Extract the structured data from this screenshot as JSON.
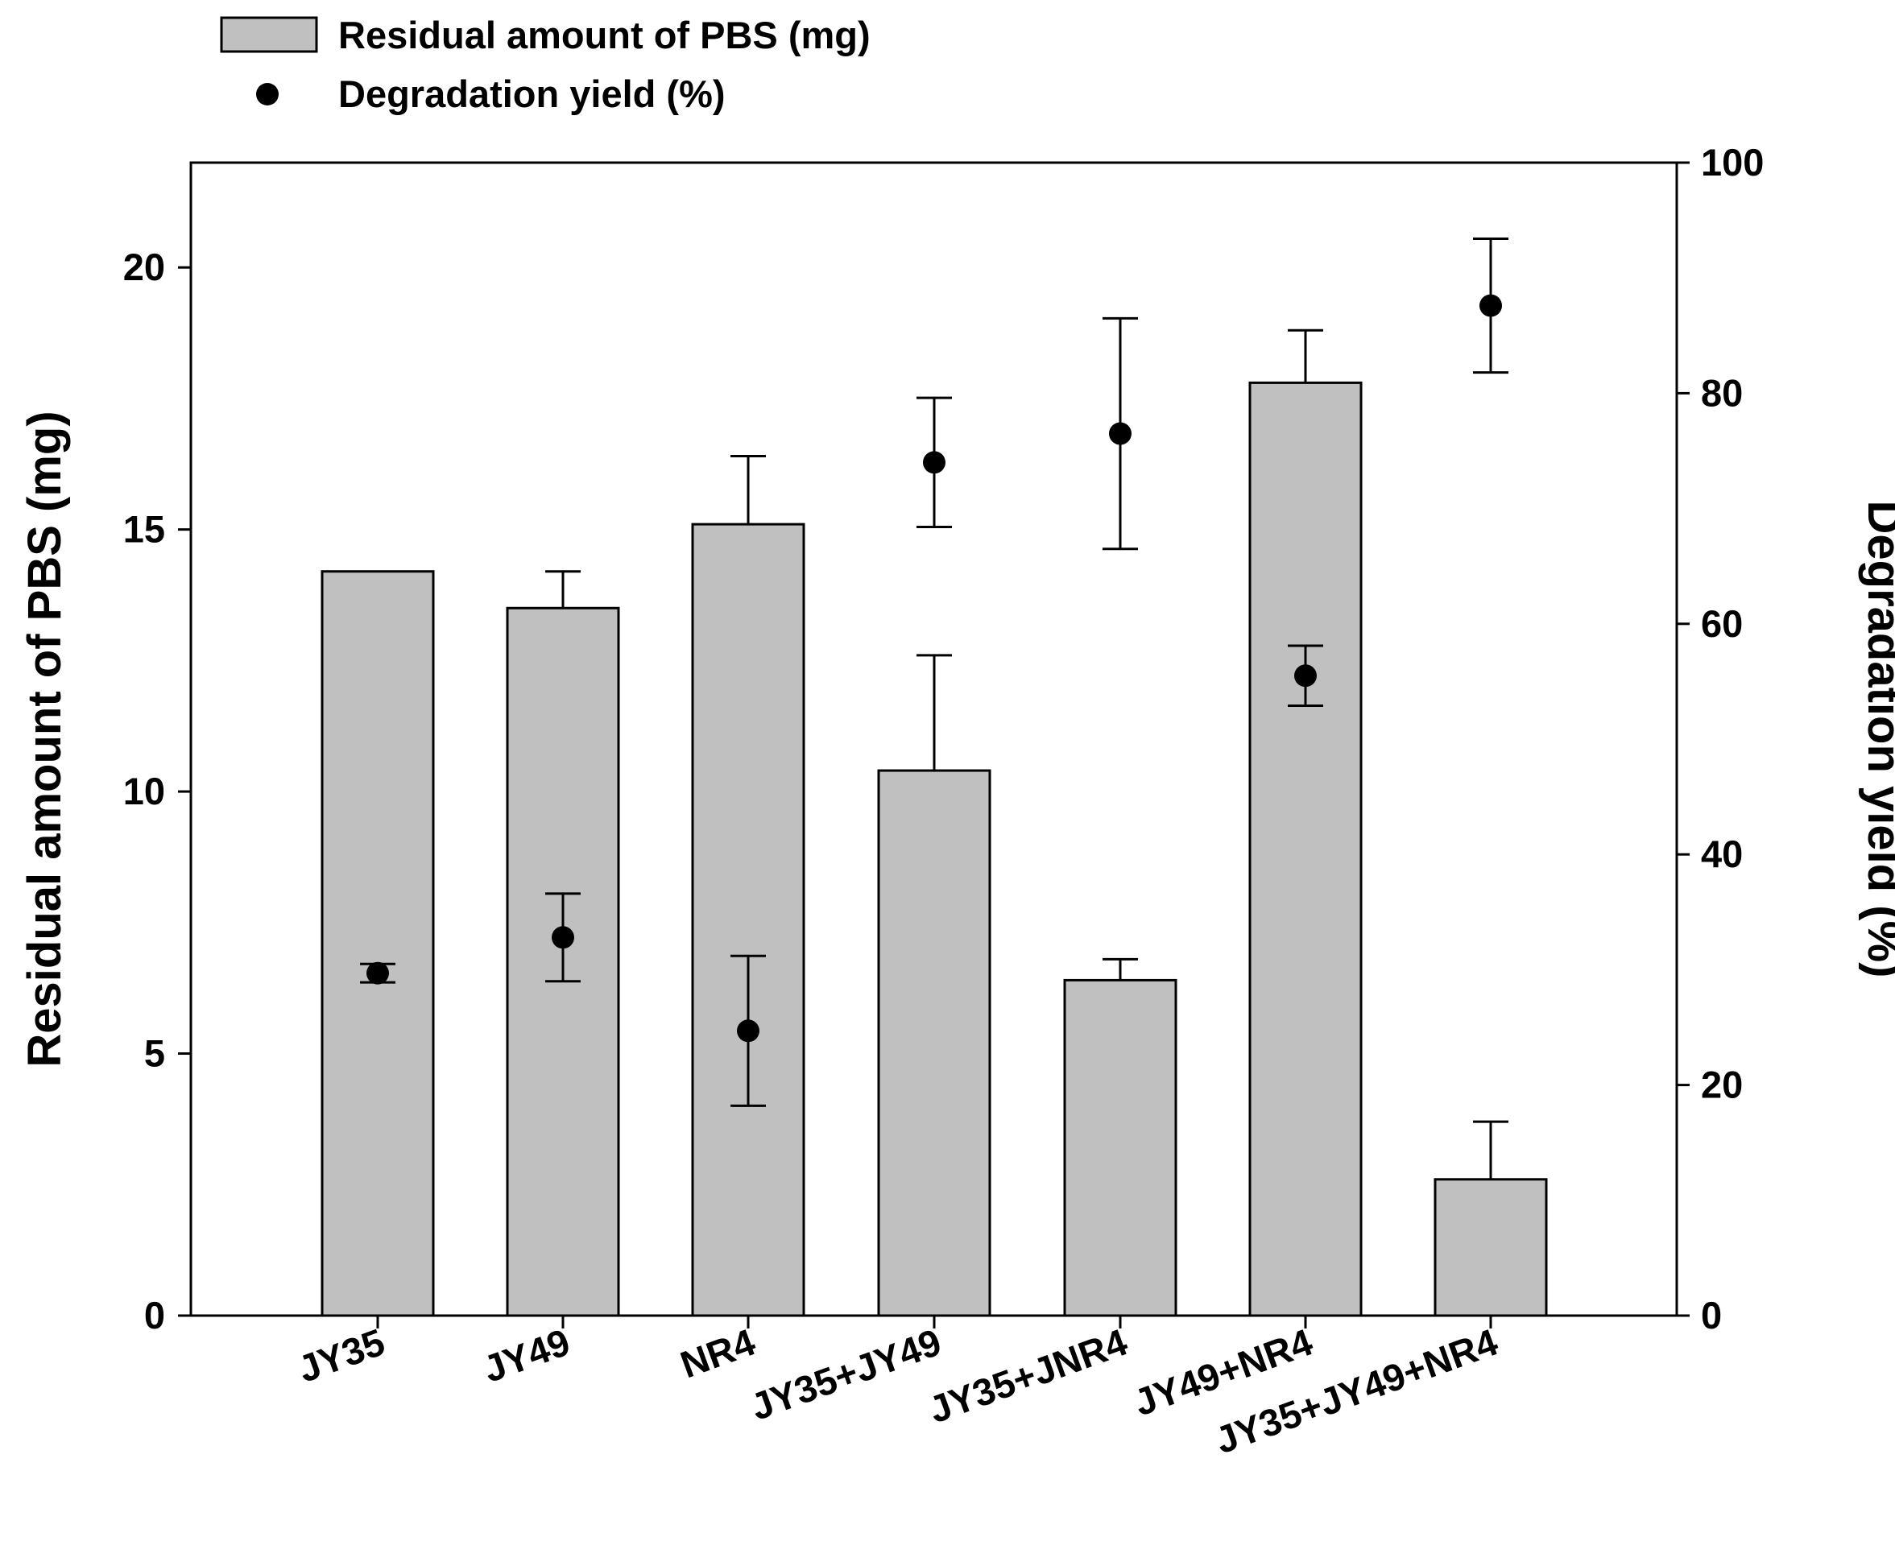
{
  "chart_data": {
    "type": "bar",
    "categories": [
      "JY35",
      "JY49",
      "NR4",
      "JY35+JY49",
      "JY35+JNR4",
      "JY49+NR4",
      "JY35+JY49+NR4"
    ],
    "series": [
      {
        "name": "Residual amount of PBS (mg)",
        "kind": "bar",
        "axis": "left",
        "values": [
          14.2,
          13.5,
          15.1,
          10.4,
          6.4,
          17.8,
          2.6
        ],
        "error_upper": [
          0.0,
          0.7,
          1.3,
          2.2,
          0.4,
          1.0,
          1.1
        ],
        "color": "#c0c0c0"
      },
      {
        "name": "Degradation yield (%)",
        "kind": "scatter",
        "axis": "right",
        "values": [
          29.7,
          32.8,
          24.7,
          74.0,
          76.5,
          55.5,
          87.6
        ],
        "error": [
          0.8,
          3.8,
          6.5,
          5.6,
          10.0,
          2.6,
          5.8
        ],
        "color": "#000000"
      }
    ],
    "ylabel": "Residual amount of PBS (mg)",
    "ylabel_right": "Degradation yield (%)",
    "ylim": [
      0,
      22
    ],
    "ylim_right": [
      0,
      100
    ],
    "yticks": [
      "0",
      "5",
      "10",
      "15",
      "20"
    ],
    "yticks_right": [
      "0",
      "20",
      "40",
      "60",
      "80",
      "100"
    ],
    "legend": {
      "position": "top-left",
      "items": [
        "Residual amount of PBS (mg)",
        "Degradation yield (%)"
      ]
    }
  }
}
